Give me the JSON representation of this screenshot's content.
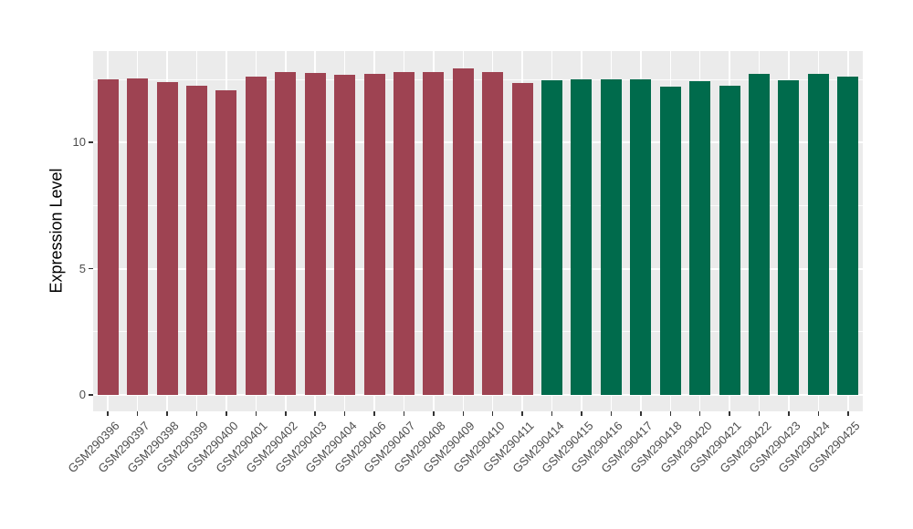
{
  "chart_data": {
    "type": "bar",
    "title": "",
    "ylabel": "Expression Level",
    "xlabel": "",
    "ylim": [
      -0.65,
      13.62
    ],
    "y_major_ticks": [
      0,
      5,
      10
    ],
    "y_minor_ticks": [
      2.5,
      7.5,
      12.5
    ],
    "grid": "on",
    "legend_position": "none",
    "panel_background": "#EBEBEB",
    "grid_major_color": "#FFFFFF",
    "grid_minor_color": "#FFFFFF",
    "axis_text_color": "#4D4D4D",
    "axis_title_color": "#000000",
    "tick_mark_color": "#333333",
    "group_colors": {
      "group1": "#9E4352",
      "group2": "#006B4C"
    },
    "categories": [
      "GSM290396",
      "GSM290397",
      "GSM290398",
      "GSM290399",
      "GSM290400",
      "GSM290401",
      "GSM290402",
      "GSM290403",
      "GSM290404",
      "GSM290406",
      "GSM290407",
      "GSM290408",
      "GSM290409",
      "GSM290410",
      "GSM290411",
      "GSM290414",
      "GSM290415",
      "GSM290416",
      "GSM290417",
      "GSM290418",
      "GSM290420",
      "GSM290421",
      "GSM290422",
      "GSM290423",
      "GSM290424",
      "GSM290425"
    ],
    "values": [
      12.49,
      12.52,
      12.4,
      12.24,
      12.08,
      12.61,
      12.79,
      12.74,
      12.68,
      12.71,
      12.8,
      12.8,
      12.95,
      12.78,
      12.34,
      12.45,
      12.49,
      12.49,
      12.5,
      12.22,
      12.44,
      12.25,
      12.73,
      12.47,
      12.71,
      12.62
    ],
    "bar_groups": [
      "group1",
      "group1",
      "group1",
      "group1",
      "group1",
      "group1",
      "group1",
      "group1",
      "group1",
      "group1",
      "group1",
      "group1",
      "group1",
      "group1",
      "group1",
      "group2",
      "group2",
      "group2",
      "group2",
      "group2",
      "group2",
      "group2",
      "group2",
      "group2",
      "group2",
      "group2"
    ]
  }
}
